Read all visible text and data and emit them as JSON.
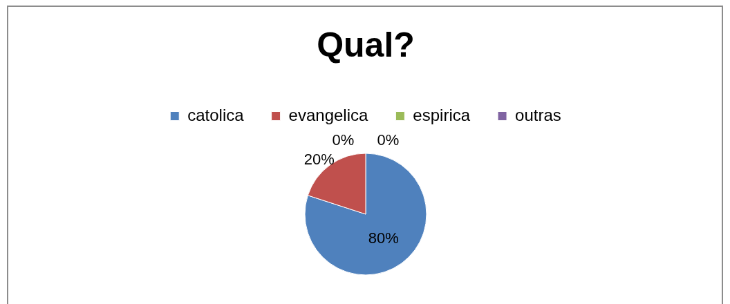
{
  "chart_data": {
    "type": "pie",
    "title": "Qual?",
    "categories": [
      "catolica",
      "evangelica",
      "espirica",
      "outras"
    ],
    "values": [
      80,
      20,
      0,
      0
    ],
    "colors": [
      "#4f81bd",
      "#c0504d",
      "#9bbb59",
      "#8064a2"
    ],
    "value_labels": [
      "80%",
      "20%",
      "0%",
      "0%"
    ],
    "legend": "top"
  }
}
